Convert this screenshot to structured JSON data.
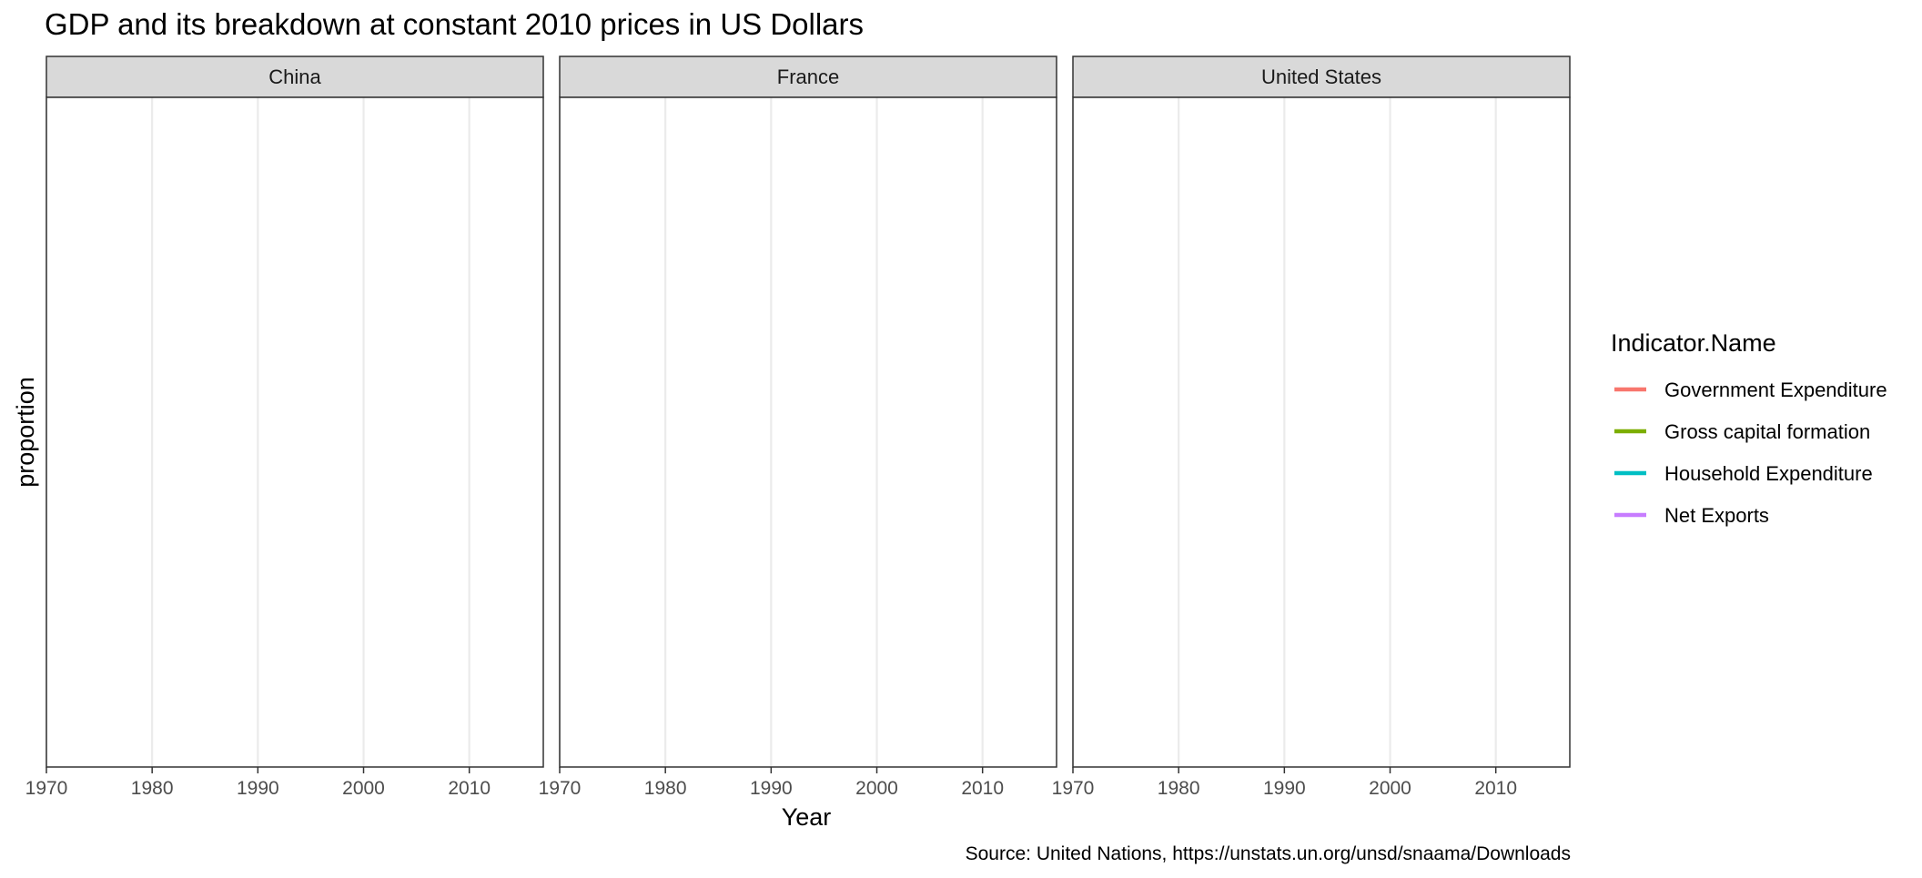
{
  "chart_data": {
    "type": "line",
    "title": "GDP and its breakdown at constant 2010 prices in US Dollars",
    "xlabel": "Year",
    "ylabel": "proportion",
    "caption": "Source: United Nations, https://unstats.un.org/unsd/snaama/Downloads",
    "xlim": [
      1970,
      2017
    ],
    "x_ticks": [
      1970,
      1980,
      1990,
      2000,
      2010
    ],
    "x_tick_labels": [
      "1970",
      "1980",
      "1990",
      "2000",
      "2010"
    ],
    "grid": true,
    "facets": [
      {
        "name": "China",
        "series": []
      },
      {
        "name": "France",
        "series": []
      },
      {
        "name": "United States",
        "series": []
      }
    ],
    "legend": {
      "title": "Indicator.Name",
      "placement": "right",
      "entries": [
        {
          "name": "Government Expenditure",
          "color": "#F8766D"
        },
        {
          "name": "Gross capital formation",
          "color": "#7CAE00"
        },
        {
          "name": "Household Expenditure",
          "color": "#00BFC4"
        },
        {
          "name": "Net Exports",
          "color": "#C77CFF"
        }
      ]
    }
  }
}
